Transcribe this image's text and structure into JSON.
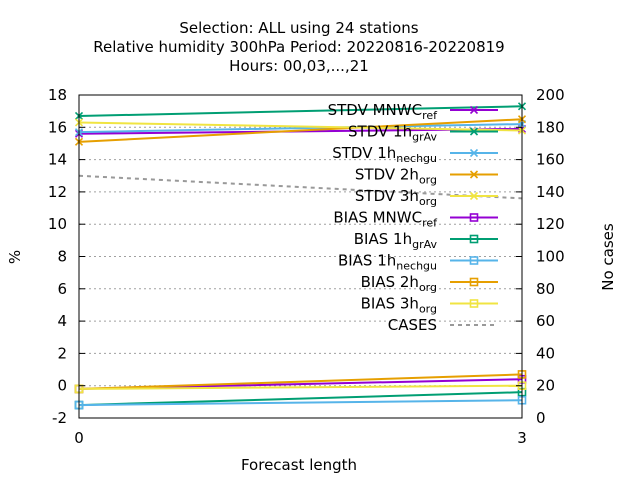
{
  "chart_data": {
    "type": "line",
    "title_lines": [
      "Selection: ALL using    24 stations",
      "Relative humidity 300hPa   Period: 20220816-20220819",
      "Hours:  00,03,...,21"
    ],
    "xlabel": "Forecast length",
    "ylabel": "%",
    "y2label": "No cases",
    "x": [
      0,
      3
    ],
    "xlim": [
      0,
      3
    ],
    "ylim": [
      -2,
      18
    ],
    "y2lim": [
      0,
      200
    ],
    "xticks": [
      0,
      3
    ],
    "yticks": [
      -2,
      0,
      2,
      4,
      6,
      8,
      10,
      12,
      14,
      16,
      18
    ],
    "y2ticks": [
      0,
      20,
      40,
      60,
      80,
      100,
      120,
      140,
      160,
      180,
      200
    ],
    "grid": true,
    "legend_position": "top-right",
    "series": [
      {
        "name": "STDV MNWC_ref",
        "label_main": "STDV MNWC",
        "label_sub": "ref",
        "values": [
          15.6,
          15.9
        ],
        "color": "#9400d3",
        "marker": "x",
        "dash": false,
        "axis": "y"
      },
      {
        "name": "STDV 1h_grAv",
        "label_main": "STDV 1h",
        "label_sub": "grAv",
        "values": [
          16.7,
          17.3
        ],
        "color": "#009e73",
        "marker": "x",
        "dash": false,
        "axis": "y"
      },
      {
        "name": "STDV 1h_nechgu",
        "label_main": "STDV 1h",
        "label_sub": "nechgu",
        "values": [
          15.7,
          16.2
        ],
        "color": "#56b4e9",
        "marker": "x",
        "dash": false,
        "axis": "y"
      },
      {
        "name": "STDV 2h_org",
        "label_main": "STDV 2h",
        "label_sub": "org",
        "values": [
          15.1,
          16.5
        ],
        "color": "#e69f00",
        "marker": "x",
        "dash": false,
        "axis": "y"
      },
      {
        "name": "STDV 3h_org",
        "label_main": "STDV 3h",
        "label_sub": "org",
        "values": [
          16.3,
          15.8
        ],
        "color": "#f0e442",
        "marker": "x",
        "dash": false,
        "axis": "y"
      },
      {
        "name": "BIAS MNWC_ref",
        "label_main": "BIAS MNWC",
        "label_sub": "ref",
        "values": [
          -0.2,
          0.4
        ],
        "color": "#9400d3",
        "marker": "square",
        "dash": false,
        "axis": "y"
      },
      {
        "name": "BIAS 1h_grAv",
        "label_main": "BIAS 1h",
        "label_sub": "grAv",
        "values": [
          -1.2,
          -0.4
        ],
        "color": "#009e73",
        "marker": "square",
        "dash": false,
        "axis": "y"
      },
      {
        "name": "BIAS 1h_nechgu",
        "label_main": "BIAS 1h",
        "label_sub": "nechgu",
        "values": [
          -1.2,
          -0.9
        ],
        "color": "#56b4e9",
        "marker": "square",
        "dash": false,
        "axis": "y"
      },
      {
        "name": "BIAS 2h_org",
        "label_main": "BIAS 2h",
        "label_sub": "org",
        "values": [
          -0.2,
          0.7
        ],
        "color": "#e69f00",
        "marker": "square",
        "dash": false,
        "axis": "y"
      },
      {
        "name": "BIAS 3h_org",
        "label_main": "BIAS 3h",
        "label_sub": "org",
        "values": [
          -0.2,
          0.0
        ],
        "color": "#f0e442",
        "marker": "square",
        "dash": false,
        "axis": "y"
      },
      {
        "name": "CASES",
        "label_main": "CASES",
        "label_sub": "",
        "values": [
          150,
          136
        ],
        "color": "#999999",
        "marker": "none",
        "dash": true,
        "axis": "y2"
      }
    ]
  }
}
